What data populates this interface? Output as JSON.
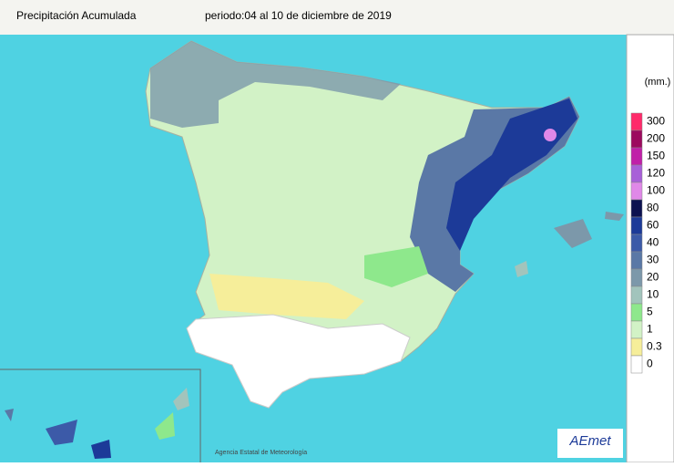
{
  "header": {
    "title": "Precipitación Acumulada",
    "period": "periodo:04 al 10 de diciembre de 2019"
  },
  "legend": {
    "unit": "(mm.)",
    "levels": [
      {
        "value": 300,
        "color": "#ff2a6a"
      },
      {
        "value": 200,
        "color": "#9c0a5e"
      },
      {
        "value": 150,
        "color": "#c020a8"
      },
      {
        "value": 120,
        "color": "#a860d8"
      },
      {
        "value": 100,
        "color": "#e088e8"
      },
      {
        "value": 80,
        "color": "#0c1250"
      },
      {
        "value": 60,
        "color": "#1c3a98"
      },
      {
        "value": 40,
        "color": "#3c5aa8"
      },
      {
        "value": 30,
        "color": "#5a78a6"
      },
      {
        "value": 20,
        "color": "#7c98aa"
      },
      {
        "value": 10,
        "color": "#a2c4bc"
      },
      {
        "value": 5,
        "color": "#8ee88c"
      },
      {
        "value": 1,
        "color": "#d2f2c6"
      },
      {
        "value": 0.3,
        "color": "#f6ee9a"
      },
      {
        "value": 0,
        "color": "#ffffff"
      }
    ]
  },
  "credit": "Agencia Estatal de Meteorología",
  "logo": "AEmet"
}
